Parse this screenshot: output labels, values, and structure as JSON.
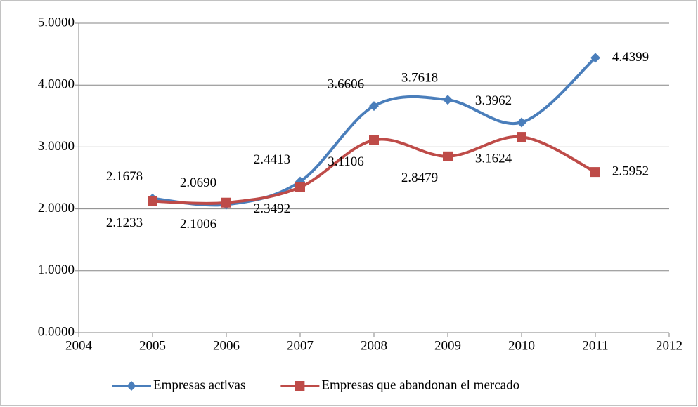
{
  "chart_data": {
    "type": "line",
    "x": [
      2005,
      2006,
      2007,
      2008,
      2009,
      2010,
      2011
    ],
    "series": [
      {
        "name": "Empresas activas",
        "color": "#4a7ebb",
        "values": [
          2.1678,
          2.069,
          2.4413,
          3.6606,
          3.7618,
          3.3962,
          4.4399
        ],
        "value_labels": [
          "2.1678",
          "2.0690",
          "2.4413",
          "3.6606",
          "3.7618",
          "3.3962",
          "4.4399"
        ]
      },
      {
        "name": "Empresas que abandonan el mercado",
        "color": "#be4b48",
        "values": [
          2.1233,
          2.1006,
          2.3492,
          3.1106,
          2.8479,
          3.1624,
          2.5952
        ],
        "value_labels": [
          "2.1233",
          "2.1006",
          "2.3492",
          "3.1106",
          "2.8479",
          "3.1624",
          "2.5952"
        ]
      }
    ],
    "xlim": [
      2004,
      2012
    ],
    "xticks": [
      2004,
      2005,
      2006,
      2007,
      2008,
      2009,
      2010,
      2011,
      2012
    ],
    "ylim": [
      0,
      5
    ],
    "yticks": [
      {
        "value": 0,
        "label": "0.0000"
      },
      {
        "value": 1,
        "label": "1.0000"
      },
      {
        "value": 2,
        "label": "2.0000"
      },
      {
        "value": 3,
        "label": "3.0000"
      },
      {
        "value": 4,
        "label": "4.0000"
      },
      {
        "value": 5,
        "label": "5.0000"
      }
    ],
    "grid": true,
    "smooth": true,
    "legend": "bottom"
  }
}
